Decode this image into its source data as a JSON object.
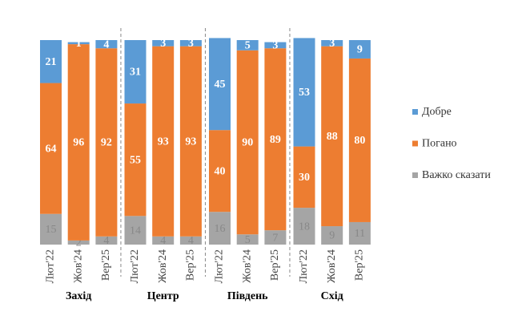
{
  "chart_data": {
    "type": "stacked_bar",
    "categories": [
      "Лют'22",
      "Жов'24",
      "Вер'25",
      "Лют'22",
      "Жов'24",
      "Вер'25",
      "Лют'22",
      "Жов'24",
      "Вер'25",
      "Лют'22",
      "Жов'24",
      "Вер'25"
    ],
    "groups": [
      "Захід",
      "Центр",
      "Південь",
      "Схід"
    ],
    "series": [
      {
        "name": "Важко сказати",
        "color": "#a5a5a5",
        "values": [
          15,
          2,
          4,
          14,
          4,
          4,
          16,
          5,
          7,
          18,
          9,
          11
        ]
      },
      {
        "name": "Погано",
        "color": "#ed7d31",
        "values": [
          64,
          96,
          92,
          55,
          93,
          93,
          40,
          90,
          89,
          30,
          88,
          80
        ]
      },
      {
        "name": "Добре",
        "color": "#5b9bd5",
        "values": [
          21,
          1,
          4,
          31,
          3,
          3,
          45,
          5,
          3,
          53,
          3,
          9
        ]
      }
    ],
    "ylim": [
      0,
      100
    ],
    "legend": "right"
  }
}
